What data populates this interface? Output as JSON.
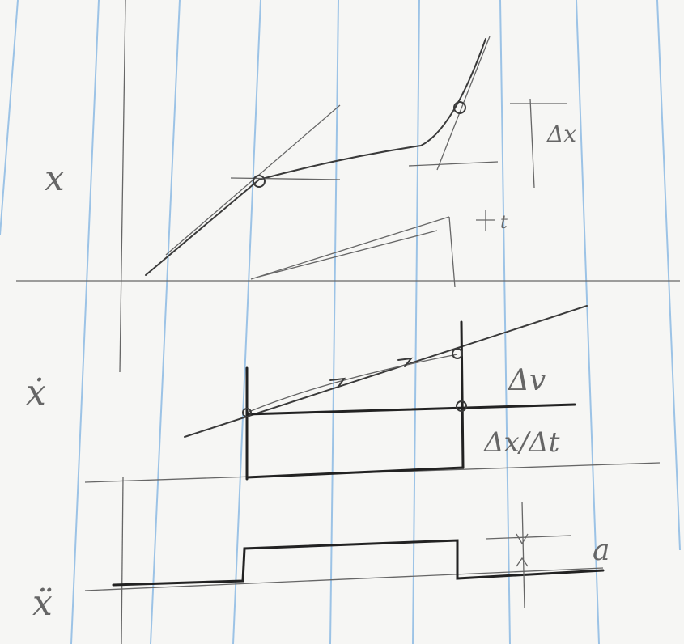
{
  "labels": {
    "position": "x",
    "delta_x": "Δx",
    "time": "t",
    "velocity": "ẋ",
    "delta_v": "Δv",
    "delta_x_over_delta_t": "Δx/Δt",
    "acceleration": "ẍ",
    "amplitude": "a"
  }
}
